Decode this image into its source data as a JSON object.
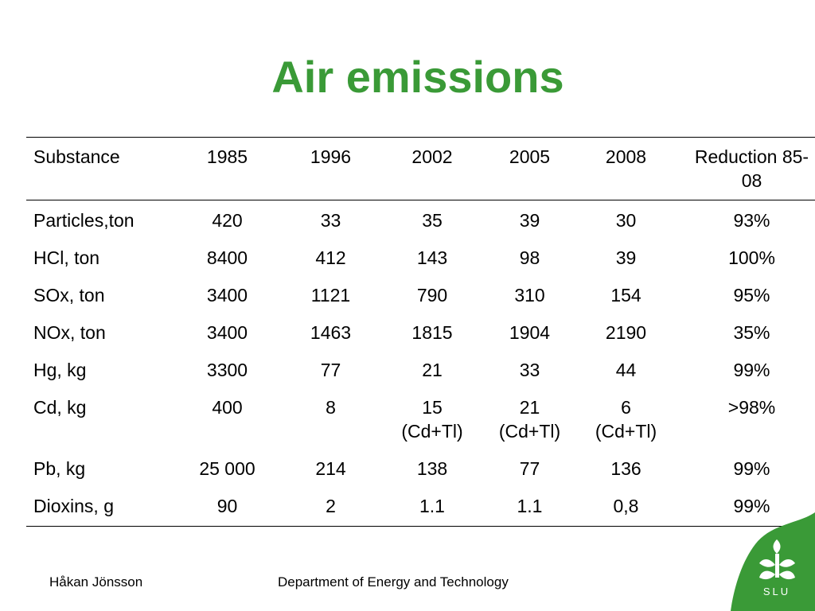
{
  "slide": {
    "title": "Air emissions",
    "accent_color": "#3a9a37"
  },
  "table": {
    "headers": [
      "Substance",
      "1985",
      "1996",
      "2002",
      "2005",
      "2008",
      "Reduction 85-08"
    ],
    "rows": [
      [
        "Particles,ton",
        "420",
        "33",
        "35",
        "39",
        "30",
        "93%"
      ],
      [
        "HCl, ton",
        "8400",
        "412",
        "143",
        "98",
        "39",
        "100%"
      ],
      [
        "SOx, ton",
        "3400",
        "1121",
        "790",
        "310",
        "154",
        "95%"
      ],
      [
        "NOx, ton",
        "3400",
        "1463",
        "1815",
        "1904",
        "2190",
        "35%"
      ],
      [
        "Hg, kg",
        "3300",
        "77",
        "21",
        "33",
        "44",
        "99%"
      ],
      [
        "Cd, kg",
        "400",
        "8",
        "15 (Cd+Tl)",
        "21 (Cd+Tl)",
        "6 (Cd+Tl)",
        ">98%"
      ],
      [
        "Pb, kg",
        "25 000",
        "214",
        "138",
        "77",
        "136",
        "99%"
      ],
      [
        "Dioxins, g",
        "90",
        "2",
        "1.1",
        "1.1",
        "0,8",
        "99%"
      ]
    ]
  },
  "footer": {
    "author": "Håkan Jönsson",
    "department": "Department of Energy and Technology"
  },
  "logo": {
    "text": "SLU",
    "icon": "slu-leaf-logo-icon",
    "color": "#3a9a37"
  }
}
